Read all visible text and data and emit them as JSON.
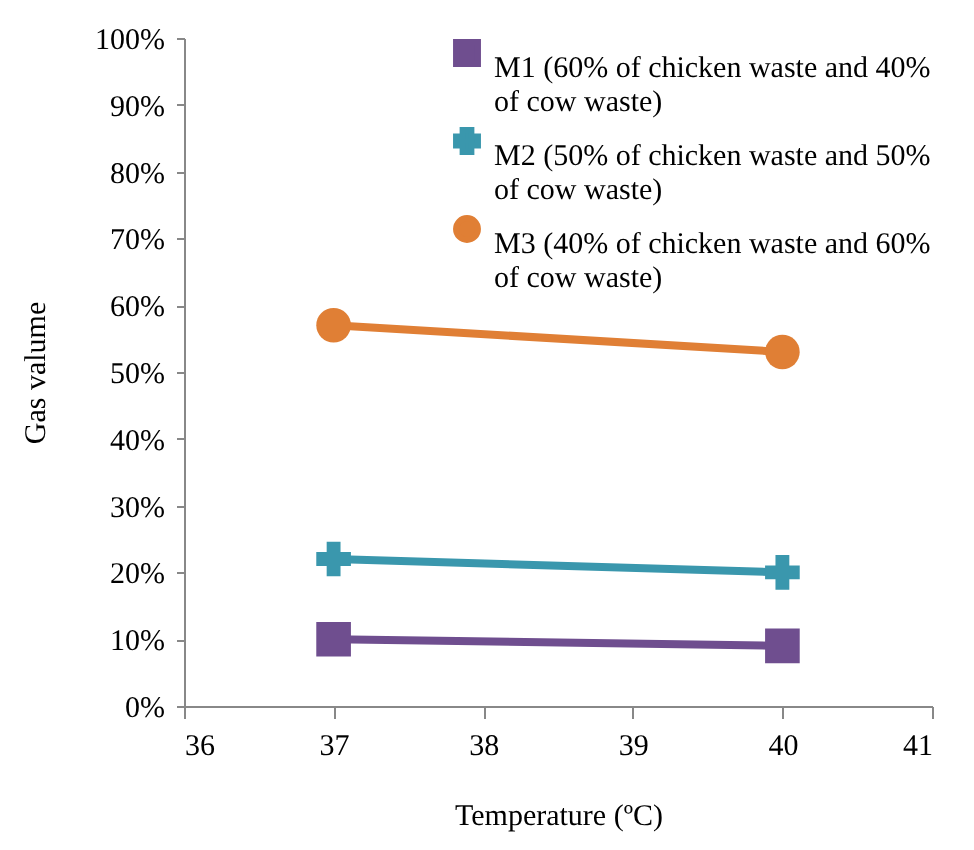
{
  "chart_data": {
    "type": "line",
    "xlabel": "Temperature (ºC)",
    "ylabel": "Gas valume",
    "x": [
      37,
      40
    ],
    "series": [
      {
        "name": "M1 (60% of chicken waste and 40% of cow waste)",
        "color": "#6f4e8f",
        "marker": "square",
        "values": [
          10,
          9
        ]
      },
      {
        "name": "M2 (50% of chicken waste and 50% of cow waste)",
        "color": "#3a97ad",
        "marker": "cross",
        "values": [
          22,
          20
        ]
      },
      {
        "name": "M3 (40% of chicken waste and 60% of cow waste)",
        "color": "#e07f35",
        "marker": "circle",
        "values": [
          57,
          53
        ]
      }
    ],
    "xlim": [
      36,
      41
    ],
    "xticks": [
      36,
      37,
      38,
      39,
      40,
      41
    ],
    "ylim": [
      0,
      100
    ],
    "yticks": [
      {
        "value": 0,
        "label": "0%"
      },
      {
        "value": 10,
        "label": "10%"
      },
      {
        "value": 20,
        "label": "20%"
      },
      {
        "value": 30,
        "label": "30%"
      },
      {
        "value": 40,
        "label": "40%"
      },
      {
        "value": 50,
        "label": "50%"
      },
      {
        "value": 60,
        "label": "60%"
      },
      {
        "value": 70,
        "label": "70%"
      },
      {
        "value": 80,
        "label": "80%"
      },
      {
        "value": 90,
        "label": "90%"
      },
      {
        "value": 100,
        "label": "100%"
      }
    ],
    "legend": "top right",
    "grid": false
  }
}
